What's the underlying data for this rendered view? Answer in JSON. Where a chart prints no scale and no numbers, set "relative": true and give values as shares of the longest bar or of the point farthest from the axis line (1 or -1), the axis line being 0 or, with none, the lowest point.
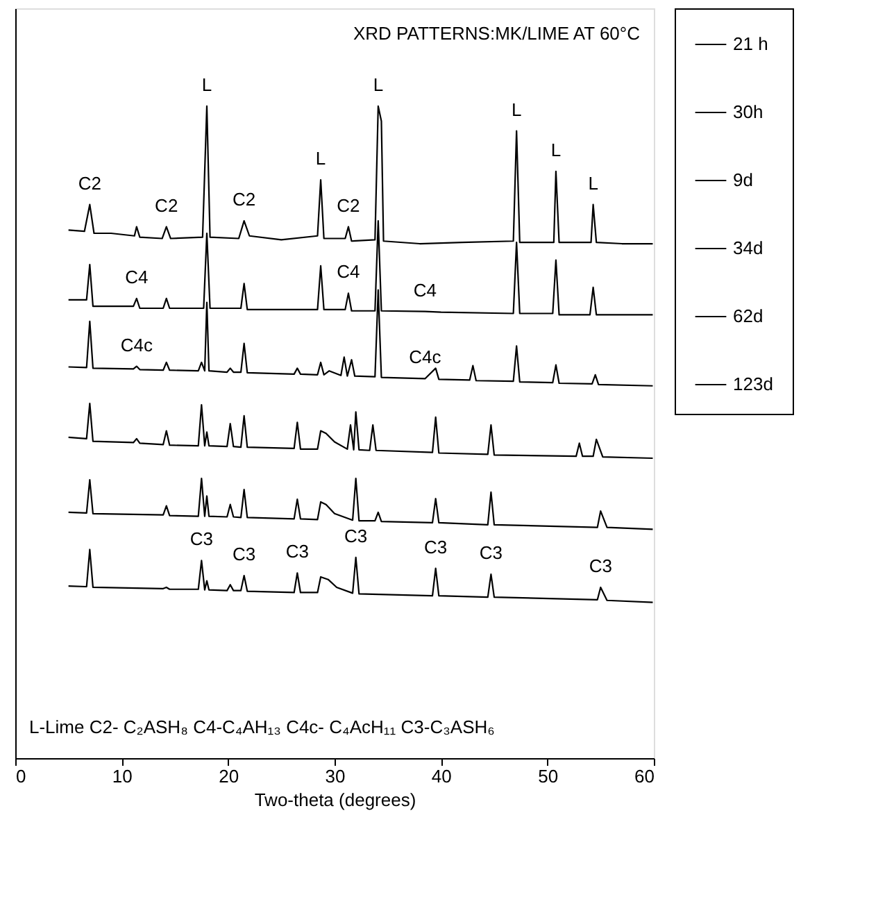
{
  "chart_data": {
    "type": "line",
    "title": "XRD PATTERNS:MK/LIME AT 60°C",
    "xlabel": "Two-theta (degrees)",
    "relative": true,
    "xlim": [
      0,
      60
    ],
    "xticks": [
      0,
      10,
      20,
      30,
      40,
      50,
      60
    ],
    "grid": false,
    "legend": "right",
    "marker": "none",
    "line_style": "solid",
    "series": [
      {
        "name": "21 h",
        "color": "#000000",
        "x": [
          5.0,
          6.5,
          7.0,
          7.4,
          9.0,
          11.2,
          11.4,
          11.7,
          13.8,
          14.2,
          14.6,
          17.6,
          18.0,
          18.3,
          21.0,
          21.5,
          22.0,
          25.0,
          28.4,
          28.7,
          29.0,
          31.0,
          31.3,
          31.6,
          33.8,
          34.1,
          34.4,
          34.6,
          38.0,
          42.0,
          46.8,
          47.1,
          47.4,
          50.6,
          50.8,
          51.1,
          54.1,
          54.3,
          54.6,
          57.0,
          59.9
        ],
        "values": [
          0.81,
          0.808,
          0.849,
          0.805,
          0.805,
          0.801,
          0.815,
          0.799,
          0.797,
          0.815,
          0.797,
          0.799,
          1.0,
          0.799,
          0.797,
          0.824,
          0.801,
          0.795,
          0.801,
          0.887,
          0.797,
          0.797,
          0.815,
          0.793,
          0.795,
          1.0,
          0.977,
          0.793,
          0.789,
          0.791,
          0.793,
          0.962,
          0.791,
          0.791,
          0.9,
          0.791,
          0.791,
          0.849,
          0.791,
          0.789,
          0.789
        ]
      },
      {
        "name": "30h",
        "color": "#000000",
        "x": [
          5.0,
          6.7,
          7.0,
          7.3,
          11.1,
          11.4,
          11.7,
          13.9,
          14.2,
          14.5,
          17.7,
          18.0,
          18.3,
          21.2,
          21.5,
          21.8,
          28.4,
          28.7,
          29.0,
          31.0,
          31.3,
          31.6,
          33.8,
          34.1,
          34.4,
          38.5,
          40.0,
          46.8,
          47.1,
          47.4,
          50.5,
          50.8,
          51.1,
          54.0,
          54.3,
          54.6,
          59.9
        ],
        "values": [
          0.703,
          0.703,
          0.757,
          0.693,
          0.693,
          0.705,
          0.69,
          0.69,
          0.705,
          0.69,
          0.69,
          0.805,
          0.69,
          0.69,
          0.728,
          0.688,
          0.688,
          0.755,
          0.688,
          0.688,
          0.713,
          0.686,
          0.686,
          0.824,
          0.686,
          0.685,
          0.684,
          0.682,
          0.791,
          0.682,
          0.682,
          0.764,
          0.68,
          0.68,
          0.722,
          0.68,
          0.68
        ]
      },
      {
        "name": "9d",
        "color": "#000000",
        "x": [
          5.0,
          6.7,
          7.0,
          7.3,
          11.1,
          11.4,
          11.7,
          13.9,
          14.2,
          14.5,
          17.2,
          17.5,
          17.8,
          18.0,
          18.2,
          19.9,
          20.2,
          20.5,
          21.2,
          21.5,
          21.8,
          26.2,
          26.5,
          26.8,
          28.4,
          28.7,
          29.0,
          29.5,
          30.6,
          30.9,
          31.2,
          31.6,
          31.9,
          33.8,
          34.1,
          34.4,
          38.5,
          39.5,
          39.8,
          42.7,
          43.0,
          43.3,
          46.8,
          47.1,
          47.4,
          50.5,
          50.8,
          51.1,
          54.2,
          54.5,
          54.8,
          59.9
        ],
        "values": [
          0.6,
          0.599,
          0.67,
          0.598,
          0.597,
          0.601,
          0.596,
          0.595,
          0.607,
          0.595,
          0.594,
          0.607,
          0.594,
          0.699,
          0.594,
          0.592,
          0.598,
          0.592,
          0.592,
          0.636,
          0.591,
          0.589,
          0.598,
          0.589,
          0.588,
          0.607,
          0.588,
          0.594,
          0.587,
          0.615,
          0.586,
          0.611,
          0.586,
          0.585,
          0.718,
          0.584,
          0.582,
          0.598,
          0.581,
          0.58,
          0.602,
          0.579,
          0.578,
          0.632,
          0.577,
          0.576,
          0.603,
          0.575,
          0.574,
          0.588,
          0.573,
          0.571
        ]
      },
      {
        "name": "34d",
        "color": "#000000",
        "x": [
          5.0,
          6.7,
          7.0,
          7.3,
          11.1,
          11.4,
          11.7,
          13.9,
          14.2,
          14.5,
          17.2,
          17.5,
          17.8,
          18.0,
          18.2,
          19.9,
          20.2,
          20.5,
          21.2,
          21.5,
          21.8,
          26.2,
          26.5,
          26.8,
          28.4,
          28.7,
          29.2,
          30.0,
          31.2,
          31.5,
          31.8,
          32.0,
          32.3,
          33.3,
          33.6,
          33.9,
          39.2,
          39.5,
          39.8,
          44.4,
          44.7,
          45.0,
          52.7,
          53.0,
          53.3,
          54.3,
          54.6,
          55.2,
          59.9
        ],
        "values": [
          0.492,
          0.49,
          0.544,
          0.486,
          0.484,
          0.49,
          0.483,
          0.481,
          0.502,
          0.48,
          0.479,
          0.542,
          0.479,
          0.5,
          0.479,
          0.478,
          0.513,
          0.478,
          0.477,
          0.525,
          0.477,
          0.475,
          0.515,
          0.474,
          0.474,
          0.502,
          0.498,
          0.485,
          0.474,
          0.511,
          0.473,
          0.531,
          0.473,
          0.472,
          0.511,
          0.472,
          0.469,
          0.523,
          0.468,
          0.466,
          0.511,
          0.465,
          0.463,
          0.483,
          0.463,
          0.463,
          0.489,
          0.462,
          0.46
        ]
      },
      {
        "name": "62d",
        "color": "#000000",
        "x": [
          5.0,
          6.7,
          7.0,
          7.3,
          13.9,
          14.2,
          14.5,
          17.2,
          17.5,
          17.8,
          18.0,
          18.2,
          19.9,
          20.2,
          20.5,
          21.2,
          21.5,
          21.8,
          26.2,
          26.5,
          26.8,
          28.4,
          28.7,
          29.2,
          30.0,
          31.7,
          32.0,
          32.3,
          33.8,
          34.1,
          34.4,
          39.2,
          39.5,
          39.8,
          44.4,
          44.7,
          45.0,
          54.7,
          55.0,
          55.6,
          59.9
        ],
        "values": [
          0.377,
          0.376,
          0.427,
          0.375,
          0.373,
          0.387,
          0.372,
          0.371,
          0.429,
          0.371,
          0.402,
          0.371,
          0.37,
          0.389,
          0.37,
          0.369,
          0.412,
          0.369,
          0.367,
          0.397,
          0.367,
          0.366,
          0.393,
          0.389,
          0.375,
          0.365,
          0.429,
          0.364,
          0.364,
          0.377,
          0.363,
          0.361,
          0.398,
          0.361,
          0.358,
          0.408,
          0.358,
          0.354,
          0.379,
          0.354,
          0.351
        ]
      },
      {
        "name": "123d",
        "color": "#000000",
        "x": [
          5.0,
          6.7,
          7.0,
          7.3,
          13.9,
          14.2,
          14.5,
          17.2,
          17.5,
          17.8,
          18.0,
          18.2,
          19.9,
          20.2,
          20.5,
          21.2,
          21.5,
          21.8,
          26.2,
          26.5,
          26.8,
          28.4,
          28.7,
          29.4,
          30.2,
          31.7,
          32.0,
          32.3,
          39.2,
          39.5,
          39.8,
          44.4,
          44.7,
          45.0,
          54.7,
          55.0,
          55.6,
          59.9
        ],
        "values": [
          0.264,
          0.263,
          0.32,
          0.262,
          0.26,
          0.262,
          0.259,
          0.259,
          0.303,
          0.258,
          0.272,
          0.258,
          0.257,
          0.266,
          0.257,
          0.257,
          0.28,
          0.256,
          0.254,
          0.284,
          0.254,
          0.254,
          0.278,
          0.274,
          0.262,
          0.253,
          0.308,
          0.252,
          0.249,
          0.291,
          0.249,
          0.247,
          0.282,
          0.247,
          0.243,
          0.262,
          0.242,
          0.239
        ]
      }
    ],
    "annotations": [
      {
        "text": "L",
        "x": 18.0,
        "y": 1.0
      },
      {
        "text": "L",
        "x": 34.1,
        "y": 1.0
      },
      {
        "text": "L",
        "x": 28.7,
        "y": 0.887
      },
      {
        "text": "L",
        "x": 47.1,
        "y": 0.962
      },
      {
        "text": "L",
        "x": 50.8,
        "y": 0.9
      },
      {
        "text": "L",
        "x": 54.3,
        "y": 0.849
      },
      {
        "text": "C2",
        "x": 7.0,
        "y": 0.849
      },
      {
        "text": "C2",
        "x": 14.2,
        "y": 0.815
      },
      {
        "text": "C2",
        "x": 21.5,
        "y": 0.824
      },
      {
        "text": "C2",
        "x": 31.3,
        "y": 0.815
      },
      {
        "text": "C4",
        "x": 11.4,
        "y": 0.705
      },
      {
        "text": "C4",
        "x": 31.3,
        "y": 0.713
      },
      {
        "text": "C4",
        "x": 38.5,
        "y": 0.685
      },
      {
        "text": "C4c",
        "x": 11.4,
        "y": 0.601
      },
      {
        "text": "C4c",
        "x": 38.5,
        "y": 0.582
      },
      {
        "text": "C3",
        "x": 17.5,
        "y": 0.303
      },
      {
        "text": "C3",
        "x": 21.5,
        "y": 0.28
      },
      {
        "text": "C3",
        "x": 26.5,
        "y": 0.284
      },
      {
        "text": "C3",
        "x": 32.0,
        "y": 0.308
      },
      {
        "text": "C3",
        "x": 39.5,
        "y": 0.291
      },
      {
        "text": "C3",
        "x": 44.7,
        "y": 0.282
      },
      {
        "text": "C3",
        "x": 55.0,
        "y": 0.262
      },
      "L-Lime  C2- C₂ASH₈  C4-C₄AH₁₃  C4c- C₄AcH₁₁  C3-C₃ASH₆"
    ]
  }
}
